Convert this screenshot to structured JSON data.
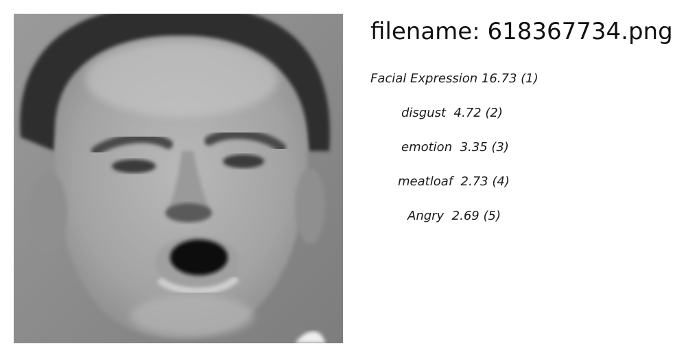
{
  "file": {
    "label": "filename:",
    "name": "618367734.png"
  },
  "photo": {
    "description_icon": "grayscale-face-photo"
  },
  "predictions": [
    {
      "label": "Facial Expression",
      "score": "16.73",
      "rank": "(1)"
    },
    {
      "label": "disgust",
      "score": "4.72",
      "rank": "(2)"
    },
    {
      "label": "emotion",
      "score": "3.35",
      "rank": "(3)"
    },
    {
      "label": "meatloaf",
      "score": "2.73",
      "rank": "(4)"
    },
    {
      "label": "Angry",
      "score": "2.69",
      "rank": "(5)"
    }
  ]
}
